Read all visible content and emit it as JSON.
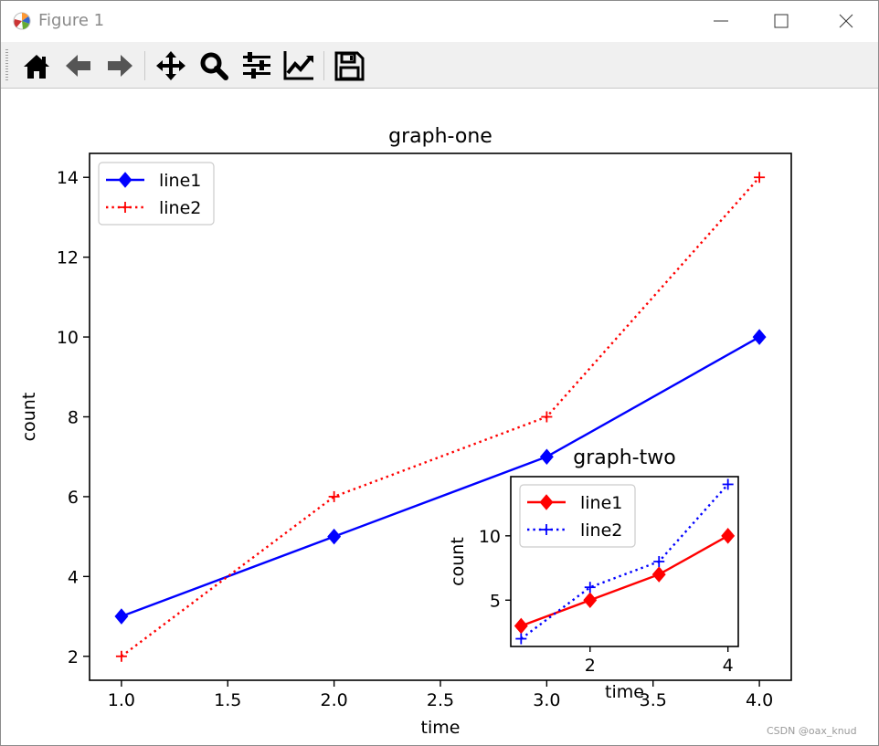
{
  "window": {
    "title": "Figure 1",
    "title_icon": "matplotlib-icon",
    "controls": [
      "minimize-icon",
      "maximize-icon",
      "close-icon"
    ]
  },
  "toolbar": {
    "tools": [
      "home-icon",
      "back-arrow-icon",
      "forward-arrow-icon",
      "pan-move-icon",
      "zoom-magnifier-icon",
      "configure-subplots-icon",
      "edit-axis-icon",
      "save-icon"
    ]
  },
  "watermark": "CSDN @oax_knud",
  "chart_data": [
    {
      "type": "line",
      "title": "graph-one",
      "xlabel": "time",
      "ylabel": "count",
      "xlim": [
        0.85,
        4.15
      ],
      "ylim": [
        1.4,
        14.6
      ],
      "x_ticks": [
        1.0,
        1.5,
        2.0,
        2.5,
        3.0,
        3.5,
        4.0
      ],
      "x_tick_labels": [
        "1.0",
        "1.5",
        "2.0",
        "2.5",
        "3.0",
        "3.5",
        "4.0"
      ],
      "y_ticks": [
        2,
        4,
        6,
        8,
        10,
        12,
        14
      ],
      "y_tick_labels": [
        "2",
        "4",
        "6",
        "8",
        "10",
        "12",
        "14"
      ],
      "grid": false,
      "legend_position": "upper-left",
      "series": [
        {
          "name": "line1",
          "x": [
            1,
            2,
            3,
            4
          ],
          "y": [
            3,
            5,
            7,
            10
          ],
          "color": "#0000ff",
          "linestyle": "solid",
          "marker": "diamond"
        },
        {
          "name": "line2",
          "x": [
            1,
            2,
            3,
            4
          ],
          "y": [
            2,
            6,
            8,
            14
          ],
          "color": "#ff0000",
          "linestyle": "dotted",
          "marker": "plus"
        }
      ]
    },
    {
      "type": "line",
      "title": "graph-two",
      "xlabel": "time",
      "ylabel": "count",
      "xlim": [
        0.85,
        4.15
      ],
      "ylim": [
        1.4,
        14.6
      ],
      "x_ticks": [
        2,
        4
      ],
      "x_tick_labels": [
        "2",
        "4"
      ],
      "y_ticks": [
        5,
        10
      ],
      "y_tick_labels": [
        "5",
        "10"
      ],
      "grid": false,
      "legend_position": "upper-left",
      "series": [
        {
          "name": "line1",
          "x": [
            1,
            2,
            3,
            4
          ],
          "y": [
            3,
            5,
            7,
            10
          ],
          "color": "#ff0000",
          "linestyle": "solid",
          "marker": "diamond"
        },
        {
          "name": "line2",
          "x": [
            1,
            2,
            3,
            4
          ],
          "y": [
            2,
            6,
            8,
            14
          ],
          "color": "#0000ff",
          "linestyle": "dotted",
          "marker": "plus"
        }
      ]
    }
  ]
}
